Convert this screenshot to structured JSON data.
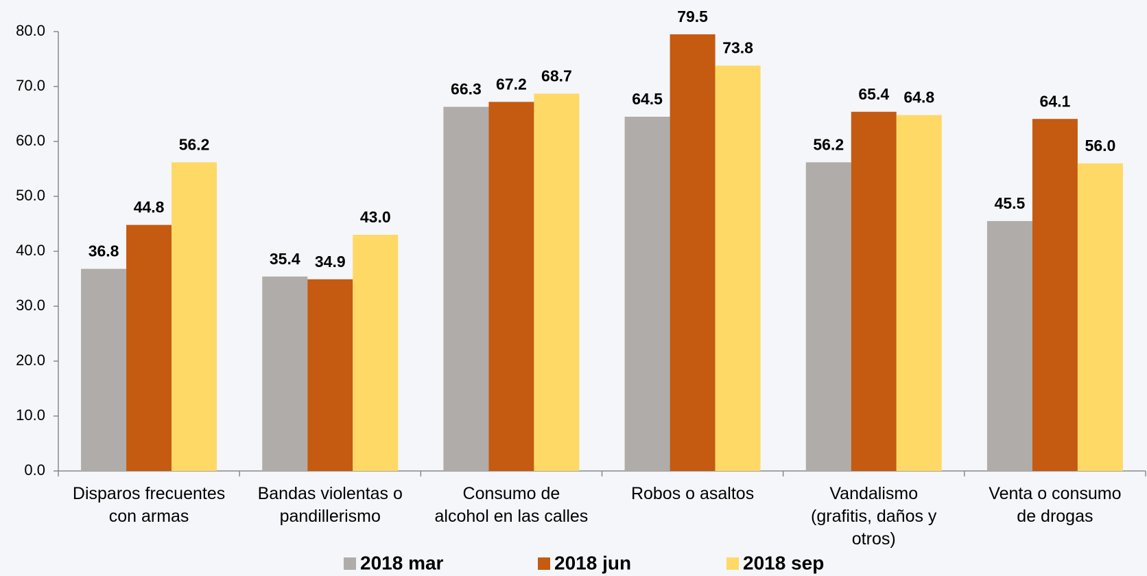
{
  "chart_data": {
    "type": "bar",
    "categories": [
      "Disparos frecuentes\ncon armas",
      "Bandas violentas o\npandillerismo",
      "Consumo de\nalcohol en las calles",
      "Robos o asaltos",
      "Vandalismo\n(grafitis, daños y\notros)",
      "Venta o consumo\nde drogas"
    ],
    "series": [
      {
        "name": "2018 mar",
        "color": "#b0aca9",
        "values": [
          36.8,
          35.4,
          66.3,
          64.5,
          56.2,
          45.5
        ],
        "value_labels": [
          "36.8",
          "35.4",
          "66.3",
          "64.5",
          "56.2",
          "45.5"
        ]
      },
      {
        "name": "2018 jun",
        "color": "#c55a11",
        "values": [
          44.8,
          34.9,
          67.2,
          79.5,
          65.4,
          64.1
        ],
        "value_labels": [
          "44.8",
          "34.9",
          "67.2",
          "79.5",
          "65.4",
          "64.1"
        ]
      },
      {
        "name": "2018 sep",
        "color": "#ffd966",
        "values": [
          56.2,
          43.0,
          68.7,
          73.8,
          64.8,
          56.0
        ],
        "value_labels": [
          "56.2",
          "43.0",
          "68.7",
          "73.8",
          "64.8",
          "56.0"
        ]
      }
    ],
    "ylim": [
      0,
      80
    ],
    "yticks": [
      {
        "value": 0,
        "label": "0.0"
      },
      {
        "value": 10,
        "label": "10.0"
      },
      {
        "value": 20,
        "label": "20.0"
      },
      {
        "value": 30,
        "label": "30.0"
      },
      {
        "value": 40,
        "label": "40.0"
      },
      {
        "value": 50,
        "label": "50.0"
      },
      {
        "value": 60,
        "label": "60.0"
      },
      {
        "value": 70,
        "label": "70.0"
      },
      {
        "value": 80,
        "label": "80.0"
      }
    ],
    "legend": "bottom"
  }
}
